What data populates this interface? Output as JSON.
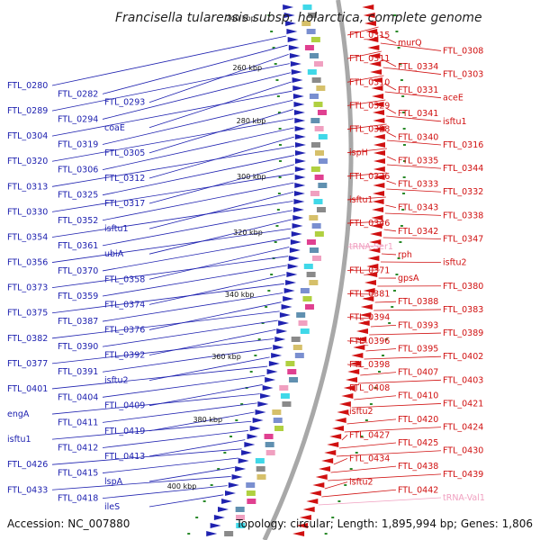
{
  "title": "Francisella tularensis subsp. holarctica, complete genome",
  "accession": "Accession: NC_007880",
  "summary": "Topology: circular; Length: 1,895,994 bp; Genes: 1,806",
  "kbp_ticks": [
    {
      "label": "240 kbp"
    },
    {
      "label": "260 kbp"
    },
    {
      "label": "280 kbp"
    },
    {
      "label": "300 kbp"
    },
    {
      "label": "320 kbp"
    },
    {
      "label": "340 kbp"
    },
    {
      "label": "360 kbp"
    },
    {
      "label": "380 kbp"
    },
    {
      "label": "400 kbp"
    }
  ],
  "left_labels": [
    "FTL_0280",
    "FTL_0282",
    "FTL_0293",
    "FTL_0289",
    "FTL_0294",
    "coaE",
    "FTL_0304",
    "FTL_0319",
    "FTL_0305",
    "FTL_0320",
    "FTL_0306",
    "FTL_0312",
    "FTL_0313",
    "FTL_0325",
    "FTL_0317",
    "FTL_0330",
    "FTL_0352",
    "isftu1",
    "FTL_0354",
    "FTL_0361",
    "ubiA",
    "FTL_0356",
    "FTL_0370",
    "FTL_0358",
    "FTL_0373",
    "FTL_0359",
    "FTL_0374",
    "FTL_0375",
    "FTL_0387",
    "FTL_0376",
    "FTL_0382",
    "FTL_0390",
    "FTL_0392",
    "FTL_0377",
    "FTL_0391",
    "isftu2",
    "FTL_0401",
    "FTL_0404",
    "FTL_0409",
    "engA",
    "FTL_0411",
    "FTL_0419",
    "isftu1",
    "FTL_0412",
    "FTL_0413",
    "FTL_0426",
    "FTL_0415",
    "lspA",
    "FTL_0433",
    "FTL_0418",
    "ileS"
  ],
  "right_labels": [
    {
      "text": "FTL_0315",
      "color": "red"
    },
    {
      "text": "murQ",
      "color": "red"
    },
    {
      "text": "FTL_0308",
      "color": "red"
    },
    {
      "text": "FTL_0311",
      "color": "red"
    },
    {
      "text": "FTL_0334",
      "color": "red"
    },
    {
      "text": "FTL_0303",
      "color": "red"
    },
    {
      "text": "FTL_0310",
      "color": "red"
    },
    {
      "text": "FTL_0331",
      "color": "red"
    },
    {
      "text": "aceE",
      "color": "red"
    },
    {
      "text": "FTL_0329",
      "color": "red"
    },
    {
      "text": "FTL_0341",
      "color": "red"
    },
    {
      "text": "isftu1",
      "color": "red"
    },
    {
      "text": "FTL_0328",
      "color": "red"
    },
    {
      "text": "FTL_0340",
      "color": "red"
    },
    {
      "text": "FTL_0316",
      "color": "red"
    },
    {
      "text": "ispH",
      "color": "red"
    },
    {
      "text": "FTL_0335",
      "color": "red"
    },
    {
      "text": "FTL_0344",
      "color": "red"
    },
    {
      "text": "FTL_0326",
      "color": "red"
    },
    {
      "text": "FTL_0333",
      "color": "red"
    },
    {
      "text": "FTL_0332",
      "color": "red"
    },
    {
      "text": "isftu1",
      "color": "red"
    },
    {
      "text": "FTL_0343",
      "color": "red"
    },
    {
      "text": "FTL_0338",
      "color": "red"
    },
    {
      "text": "FTL_0346",
      "color": "red"
    },
    {
      "text": "FTL_0342",
      "color": "red"
    },
    {
      "text": "FTL_0347",
      "color": "red"
    },
    {
      "text": "tRNA-Ser1",
      "color": "pink"
    },
    {
      "text": "rph",
      "color": "red"
    },
    {
      "text": "isftu2",
      "color": "red"
    },
    {
      "text": "FTL_0371",
      "color": "red"
    },
    {
      "text": "gpsA",
      "color": "red"
    },
    {
      "text": "FTL_0380",
      "color": "red"
    },
    {
      "text": "FTL_0381",
      "color": "red"
    },
    {
      "text": "FTL_0388",
      "color": "red"
    },
    {
      "text": "FTL_0383",
      "color": "red"
    },
    {
      "text": "FTL_0394",
      "color": "red"
    },
    {
      "text": "FTL_0393",
      "color": "red"
    },
    {
      "text": "FTL_0389",
      "color": "red"
    },
    {
      "text": "FTL_0396",
      "color": "red"
    },
    {
      "text": "FTL_0395",
      "color": "red"
    },
    {
      "text": "FTL_0402",
      "color": "red"
    },
    {
      "text": "FTL_0398",
      "color": "red"
    },
    {
      "text": "FTL_0407",
      "color": "red"
    },
    {
      "text": "FTL_0403",
      "color": "red"
    },
    {
      "text": "FTL_0408",
      "color": "red"
    },
    {
      "text": "FTL_0410",
      "color": "red"
    },
    {
      "text": "FTL_0421",
      "color": "red"
    },
    {
      "text": "isftu2",
      "color": "red"
    },
    {
      "text": "FTL_0420",
      "color": "red"
    },
    {
      "text": "FTL_0424",
      "color": "red"
    },
    {
      "text": "FTL_0427",
      "color": "red"
    },
    {
      "text": "FTL_0425",
      "color": "red"
    },
    {
      "text": "FTL_0430",
      "color": "red"
    },
    {
      "text": "FTL_0434",
      "color": "red"
    },
    {
      "text": "FTL_0438",
      "color": "red"
    },
    {
      "text": "FTL_0439",
      "color": "red"
    },
    {
      "text": "isftu2",
      "color": "red"
    },
    {
      "text": "FTL_0442",
      "color": "red"
    },
    {
      "text": "tRNA-Val1",
      "color": "pink"
    }
  ],
  "colors": {
    "forward": "#1f22b0",
    "reverse": "#d01010",
    "trna": "#f0a0c0",
    "backbone": "#a8a8a8",
    "gc_tick": "#2a8a2a"
  }
}
